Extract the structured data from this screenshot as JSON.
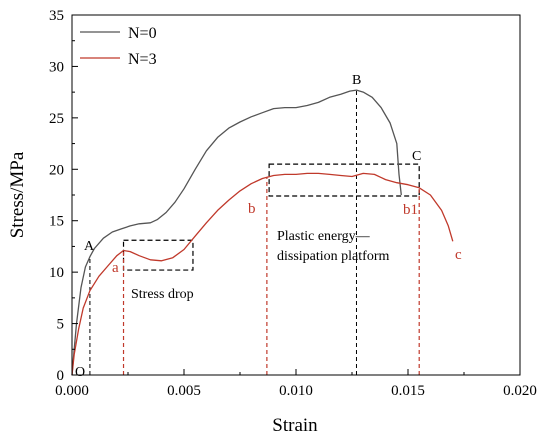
{
  "chart_data": {
    "type": "line",
    "xlabel": "Strain",
    "ylabel": "Stress/MPa",
    "xlim": [
      0,
      0.02
    ],
    "ylim": [
      0,
      35
    ],
    "x_ticks": [
      "0.000",
      "0.005",
      "0.010",
      "0.015",
      "0.020"
    ],
    "y_ticks": [
      "0",
      "5",
      "10",
      "15",
      "20",
      "25",
      "30",
      "35"
    ],
    "grid": false,
    "legend_position": "top-left",
    "colors": {
      "N0": "#555555",
      "N3": "#c0392b",
      "box": "#000000"
    },
    "series": [
      {
        "name": "N=0",
        "color": "#555555",
        "x": [
          0,
          0.0001,
          0.0002,
          0.0004,
          0.0006,
          0.0008,
          0.001,
          0.0014,
          0.0018,
          0.0022,
          0.0026,
          0.003,
          0.0035,
          0.0038,
          0.0042,
          0.0046,
          0.005,
          0.0055,
          0.006,
          0.0065,
          0.007,
          0.0075,
          0.008,
          0.0085,
          0.009,
          0.0095,
          0.01,
          0.0105,
          0.011,
          0.0115,
          0.012,
          0.0124,
          0.0127,
          0.013,
          0.0134,
          0.0138,
          0.0142,
          0.0145,
          0.0146,
          0.0147
        ],
        "y": [
          0,
          2.5,
          5,
          8.5,
          10.5,
          11.5,
          12.3,
          13.3,
          13.9,
          14.2,
          14.5,
          14.7,
          14.8,
          15.1,
          15.8,
          16.8,
          18.1,
          20.0,
          21.8,
          23.1,
          24.0,
          24.6,
          25.1,
          25.5,
          25.9,
          26.0,
          26.0,
          26.2,
          26.5,
          27.0,
          27.3,
          27.6,
          27.7,
          27.5,
          27.0,
          26.0,
          24.5,
          22.5,
          19.5,
          17.5
        ]
      },
      {
        "name": "N=3",
        "color": "#c0392b",
        "x": [
          0,
          0.0001,
          0.0003,
          0.0005,
          0.0008,
          0.0012,
          0.0016,
          0.002,
          0.0023,
          0.0026,
          0.003,
          0.0035,
          0.004,
          0.0045,
          0.005,
          0.0055,
          0.006,
          0.0065,
          0.007,
          0.0075,
          0.008,
          0.0085,
          0.009,
          0.0095,
          0.01,
          0.0105,
          0.011,
          0.0115,
          0.012,
          0.0125,
          0.013,
          0.0135,
          0.014,
          0.0145,
          0.015,
          0.0155,
          0.016,
          0.0165,
          0.0168,
          0.017
        ],
        "y": [
          0,
          2,
          4.5,
          6.5,
          8.2,
          9.6,
          10.6,
          11.6,
          12.1,
          12.0,
          11.6,
          11.2,
          11.1,
          11.4,
          12.2,
          13.5,
          14.8,
          16.0,
          17.0,
          17.9,
          18.6,
          19.1,
          19.4,
          19.5,
          19.5,
          19.6,
          19.6,
          19.5,
          19.4,
          19.3,
          19.6,
          19.5,
          19.0,
          18.7,
          18.5,
          18.2,
          17.5,
          16.0,
          14.5,
          13.0
        ]
      }
    ],
    "annotations": {
      "A": "A",
      "B": "B",
      "C": "C",
      "O": "O",
      "a": "a",
      "b": "b",
      "b1": "b1",
      "c": "c",
      "stress_drop": "Stress drop",
      "platform_line1": "Plastic energy—",
      "platform_line2": "dissipation platform"
    },
    "guides": {
      "black_dashed_x": [
        0.0008,
        0.0127
      ],
      "red_dashed_x": [
        0.0023,
        0.0087,
        0.0155
      ],
      "stress_drop_box": {
        "x": [
          0.0023,
          0.0054
        ],
        "y": [
          10.2,
          13.1
        ]
      },
      "platform_box": {
        "x": [
          0.0088,
          0.0155
        ],
        "y": [
          17.4,
          20.5
        ]
      }
    }
  }
}
